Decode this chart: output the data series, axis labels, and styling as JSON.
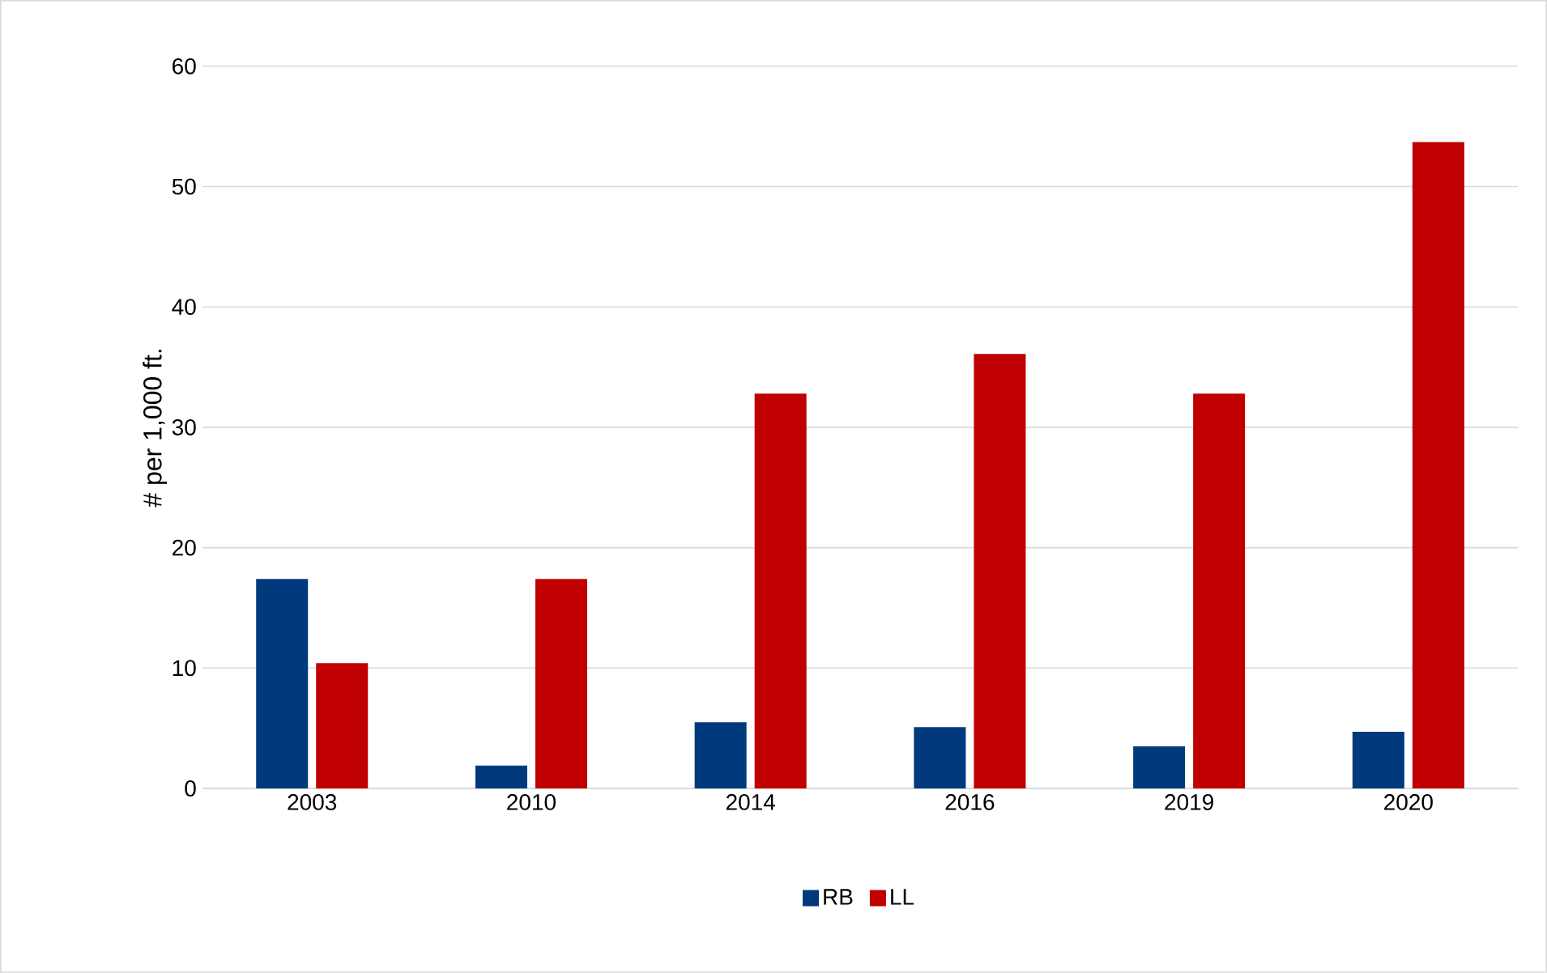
{
  "chart_data": {
    "type": "bar",
    "ylabel": "# per 1,000 ft.",
    "categories": [
      "2003",
      "2010",
      "2014",
      "2016",
      "2019",
      "2020"
    ],
    "series": [
      {
        "name": "RB",
        "color": "#003a7d",
        "values": [
          17.4,
          1.9,
          5.5,
          5.1,
          3.5,
          4.7
        ]
      },
      {
        "name": "LL",
        "color": "#c00000",
        "values": [
          10.4,
          17.4,
          32.8,
          36.1,
          32.8,
          53.7
        ]
      }
    ],
    "ylim": [
      0,
      60
    ],
    "yticks": [
      0,
      10,
      20,
      30,
      40,
      50,
      60
    ],
    "grid": "y",
    "legend": "bottom"
  }
}
